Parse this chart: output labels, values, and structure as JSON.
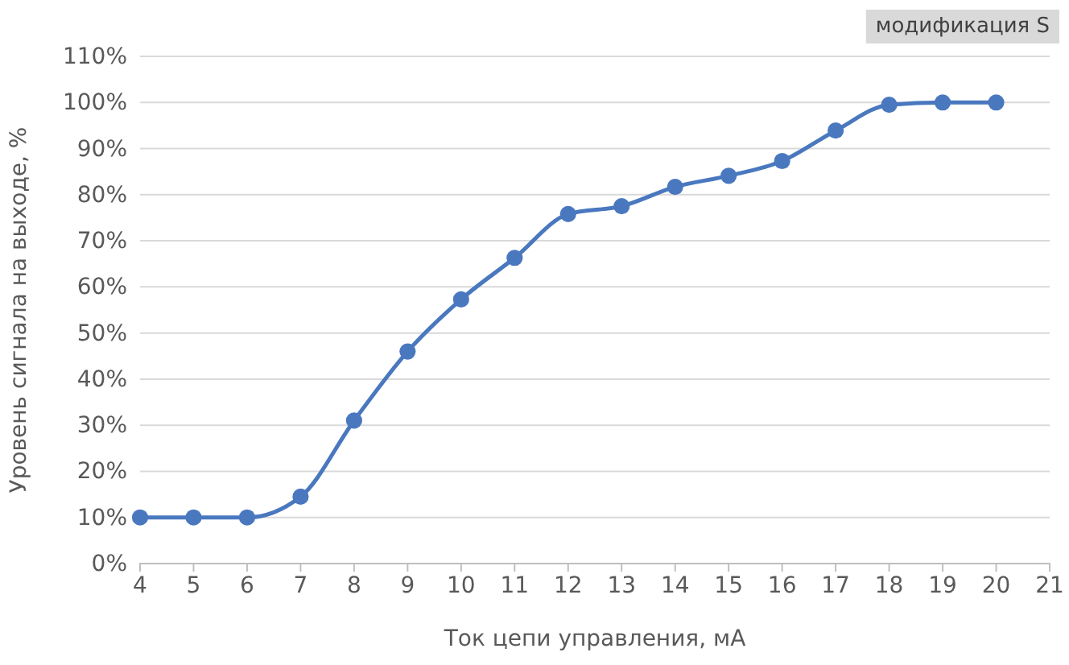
{
  "chart_data": {
    "type": "line",
    "xlabel": "Ток цепи управления, мА",
    "ylabel": "Уровень сигнала на выходе, %",
    "annotations": [
      "модификация S"
    ],
    "x": [
      4,
      5,
      6,
      7,
      8,
      9,
      10,
      11,
      12,
      13,
      14,
      15,
      16,
      17,
      18,
      19,
      20
    ],
    "series": [
      {
        "color": "#4a78bf",
        "values": [
          10,
          10,
          10,
          14.5,
          31,
          46,
          57.3,
          66.3,
          75.8,
          77.5,
          81.7,
          84.1,
          87.3,
          93.9,
          99.5,
          100,
          100
        ]
      }
    ],
    "xlim": [
      4,
      21
    ],
    "xticks": [
      4,
      5,
      6,
      7,
      8,
      9,
      10,
      11,
      12,
      13,
      14,
      15,
      16,
      17,
      18,
      19,
      20,
      21
    ],
    "ylim": [
      0,
      110
    ],
    "yticks": [
      {
        "value": 0,
        "label": "0%"
      },
      {
        "value": 10,
        "label": "10%"
      },
      {
        "value": 20,
        "label": "20%"
      },
      {
        "value": 30,
        "label": "30%"
      },
      {
        "value": 40,
        "label": "40%"
      },
      {
        "value": 50,
        "label": "50%"
      },
      {
        "value": 60,
        "label": "60%"
      },
      {
        "value": 70,
        "label": "70%"
      },
      {
        "value": 80,
        "label": "80%"
      },
      {
        "value": 90,
        "label": "90%"
      },
      {
        "value": 100,
        "label": "100%"
      },
      {
        "value": 110,
        "label": "110%"
      }
    ],
    "grid": "y",
    "marker": "circle",
    "line_style": "solid"
  }
}
